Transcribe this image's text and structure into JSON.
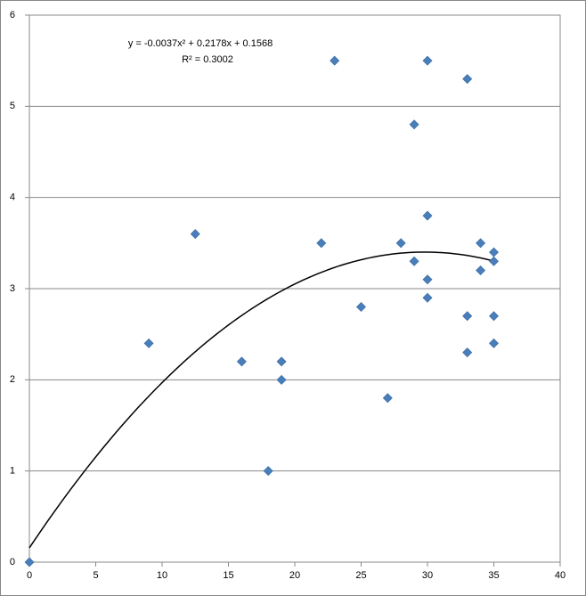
{
  "chart_data": {
    "type": "scatter",
    "annotations": [
      "y = -0.0037x² + 0.2178x + 0.1568",
      "R² = 0.3002"
    ],
    "series": [
      {
        "color": "#4a7ebb",
        "x": [
          0,
          9,
          12.5,
          16,
          18,
          19,
          19,
          22,
          23,
          25,
          27,
          28,
          29,
          29,
          30,
          30,
          30,
          30,
          33,
          33,
          33,
          34,
          34,
          35,
          35,
          35,
          35
        ],
        "values": [
          0,
          2.4,
          3.6,
          2.2,
          1.0,
          2.2,
          2.0,
          3.5,
          5.5,
          2.8,
          1.8,
          3.5,
          4.8,
          3.3,
          5.5,
          3.8,
          3.1,
          2.9,
          5.3,
          2.7,
          2.3,
          3.5,
          3.2,
          3.4,
          3.3,
          2.7,
          2.4
        ]
      }
    ],
    "trendline": {
      "kind": "polynomial",
      "order": 2,
      "color": "#000000"
    },
    "xlim": [
      0,
      40
    ],
    "xticks": [
      0,
      5,
      10,
      15,
      20,
      25,
      30,
      35,
      40
    ],
    "ylim": [
      0,
      6
    ],
    "yticks": [
      0,
      1,
      2,
      3,
      4,
      5,
      6
    ],
    "grid": true
  }
}
